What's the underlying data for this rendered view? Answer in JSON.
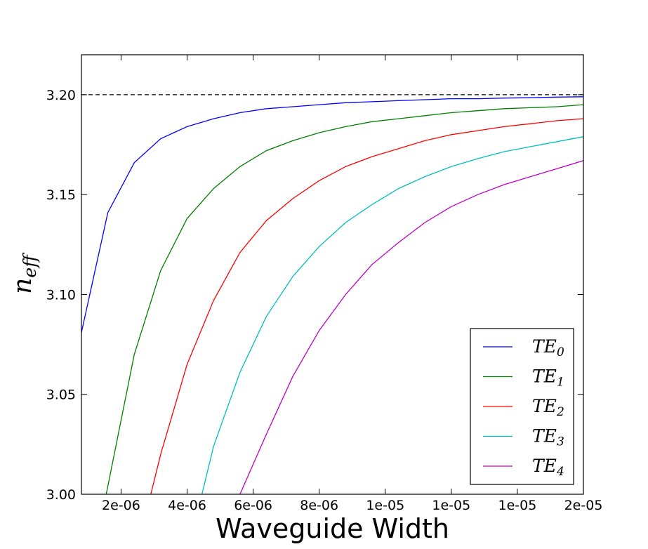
{
  "chart_data": {
    "type": "line",
    "title": "",
    "xlabel": "Waveguide Width",
    "ylabel": {
      "main": "n",
      "sub": "eff"
    },
    "xlim": [
      8e-07,
      1.6e-05
    ],
    "ylim": [
      3.0,
      3.22
    ],
    "x_ticks": [
      {
        "value": 2e-06,
        "label": "2e-06"
      },
      {
        "value": 4e-06,
        "label": "4e-06"
      },
      {
        "value": 6e-06,
        "label": "6e-06"
      },
      {
        "value": 8e-06,
        "label": "8e-06"
      },
      {
        "value": 1e-05,
        "label": "1e-05"
      },
      {
        "value": 1.2e-05,
        "label": "1e-05"
      },
      {
        "value": 1.4e-05,
        "label": "1e-05"
      },
      {
        "value": 1.6e-05,
        "label": "2e-05"
      }
    ],
    "y_ticks": [
      {
        "value": 3.0,
        "label": "3.00"
      },
      {
        "value": 3.05,
        "label": "3.05"
      },
      {
        "value": 3.1,
        "label": "3.10"
      },
      {
        "value": 3.15,
        "label": "3.15"
      },
      {
        "value": 3.2,
        "label": "3.20"
      }
    ],
    "reference_line": {
      "y": 3.2,
      "style": "dashed",
      "color": "#000000"
    },
    "grid": false,
    "legend_position": "lower-right",
    "series": [
      {
        "name": "TE",
        "subscript": "0",
        "color": "#0000ff",
        "points": [
          [
            8e-07,
            3.081
          ],
          [
            1.6e-06,
            3.141
          ],
          [
            2.4e-06,
            3.166
          ],
          [
            3.2e-06,
            3.178
          ],
          [
            4e-06,
            3.184
          ],
          [
            4.8e-06,
            3.188
          ],
          [
            5.6e-06,
            3.191
          ],
          [
            6.4e-06,
            3.193
          ],
          [
            7.2e-06,
            3.194
          ],
          [
            8e-06,
            3.195
          ],
          [
            8.8e-06,
            3.196
          ],
          [
            9.6e-06,
            3.1965
          ],
          [
            1.04e-05,
            3.197
          ],
          [
            1.12e-05,
            3.1975
          ],
          [
            1.2e-05,
            3.198
          ],
          [
            1.28e-05,
            3.198
          ],
          [
            1.36e-05,
            3.1983
          ],
          [
            1.44e-05,
            3.1985
          ],
          [
            1.52e-05,
            3.1988
          ],
          [
            1.6e-05,
            3.199
          ]
        ]
      },
      {
        "name": "TE",
        "subscript": "1",
        "color": "#008000",
        "points": [
          [
            1.55e-06,
            3.0
          ],
          [
            2.4e-06,
            3.07
          ],
          [
            3.2e-06,
            3.112
          ],
          [
            4e-06,
            3.138
          ],
          [
            4.8e-06,
            3.153
          ],
          [
            5.6e-06,
            3.164
          ],
          [
            6.4e-06,
            3.172
          ],
          [
            7.2e-06,
            3.177
          ],
          [
            8e-06,
            3.181
          ],
          [
            8.8e-06,
            3.184
          ],
          [
            9.6e-06,
            3.1865
          ],
          [
            1.04e-05,
            3.188
          ],
          [
            1.12e-05,
            3.1895
          ],
          [
            1.2e-05,
            3.191
          ],
          [
            1.28e-05,
            3.192
          ],
          [
            1.36e-05,
            3.193
          ],
          [
            1.44e-05,
            3.1935
          ],
          [
            1.52e-05,
            3.194
          ],
          [
            1.6e-05,
            3.195
          ]
        ]
      },
      {
        "name": "TE",
        "subscript": "2",
        "color": "#ff0000",
        "points": [
          [
            2.9e-06,
            3.0
          ],
          [
            3.2e-06,
            3.02
          ],
          [
            4e-06,
            3.065
          ],
          [
            4.8e-06,
            3.097
          ],
          [
            5.6e-06,
            3.121
          ],
          [
            6.4e-06,
            3.137
          ],
          [
            7.2e-06,
            3.148
          ],
          [
            8e-06,
            3.157
          ],
          [
            8.8e-06,
            3.164
          ],
          [
            9.6e-06,
            3.169
          ],
          [
            1.04e-05,
            3.173
          ],
          [
            1.12e-05,
            3.177
          ],
          [
            1.2e-05,
            3.18
          ],
          [
            1.28e-05,
            3.182
          ],
          [
            1.36e-05,
            3.184
          ],
          [
            1.44e-05,
            3.1855
          ],
          [
            1.52e-05,
            3.187
          ],
          [
            1.6e-05,
            3.188
          ]
        ]
      },
      {
        "name": "TE",
        "subscript": "3",
        "color": "#00bfbf",
        "points": [
          [
            4.45e-06,
            3.0
          ],
          [
            4.8e-06,
            3.024
          ],
          [
            5.6e-06,
            3.061
          ],
          [
            6.4e-06,
            3.089
          ],
          [
            7.2e-06,
            3.109
          ],
          [
            8e-06,
            3.124
          ],
          [
            8.8e-06,
            3.136
          ],
          [
            9.6e-06,
            3.145
          ],
          [
            1.04e-05,
            3.153
          ],
          [
            1.12e-05,
            3.159
          ],
          [
            1.2e-05,
            3.164
          ],
          [
            1.28e-05,
            3.168
          ],
          [
            1.36e-05,
            3.1715
          ],
          [
            1.44e-05,
            3.174
          ],
          [
            1.52e-05,
            3.1765
          ],
          [
            1.6e-05,
            3.179
          ]
        ]
      },
      {
        "name": "TE",
        "subscript": "4",
        "color": "#bf00bf",
        "points": [
          [
            5.6e-06,
            3.0
          ],
          [
            6.4e-06,
            3.03
          ],
          [
            7.2e-06,
            3.059
          ],
          [
            8e-06,
            3.082
          ],
          [
            8.8e-06,
            3.1
          ],
          [
            9.6e-06,
            3.115
          ],
          [
            1.04e-05,
            3.126
          ],
          [
            1.12e-05,
            3.136
          ],
          [
            1.2e-05,
            3.144
          ],
          [
            1.28e-05,
            3.15
          ],
          [
            1.36e-05,
            3.155
          ],
          [
            1.44e-05,
            3.159
          ],
          [
            1.52e-05,
            3.163
          ],
          [
            1.6e-05,
            3.167
          ]
        ]
      }
    ]
  }
}
